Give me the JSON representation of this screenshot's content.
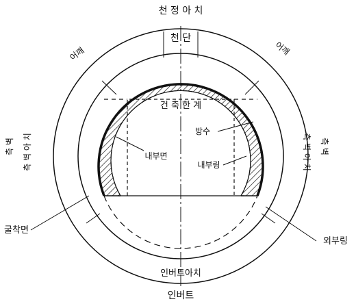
{
  "labels": {
    "crown_arch": "천 정 아 치",
    "crown": "천 단",
    "shoulder_left": "어깨",
    "shoulder_right": "어깨",
    "clearance": "건 축 한 계",
    "waterproofing": "방수",
    "inner_surface": "내부면",
    "inner_ring": "내부링",
    "sidewall_arch_left": "측 벽 아 치",
    "sidewall_left": "측 벽",
    "sidewall_arch_right": "측 벽 아 치",
    "sidewall_right": "측 벽",
    "excavation_surface": "굴착면",
    "outer_ring": "외부링",
    "invert_arch": "인버트아치",
    "invert": "인버트"
  },
  "colors": {
    "line": "#111111",
    "background": "#ffffff"
  }
}
